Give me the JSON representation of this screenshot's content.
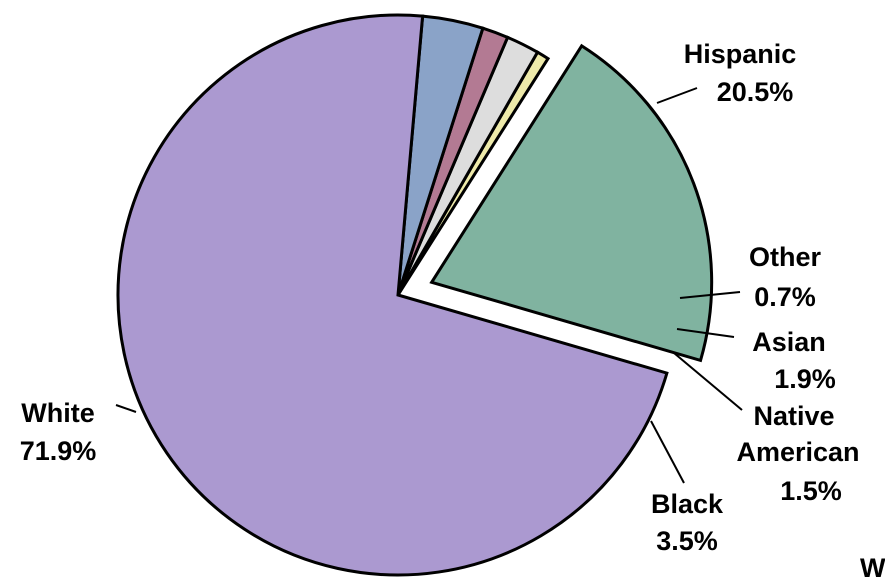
{
  "chart_data": {
    "type": "pie",
    "title": "",
    "slices": [
      {
        "name": "Hispanic",
        "value": 20.5,
        "value_label": "20.5%",
        "color": "#80b3a0",
        "exploded": true
      },
      {
        "name": "Other",
        "value": 0.7,
        "value_label": "0.7%",
        "color": "#eeeaaa",
        "exploded": false
      },
      {
        "name": "Asian",
        "value": 1.9,
        "value_label": "1.9%",
        "color": "#dddddd",
        "exploded": false
      },
      {
        "name": "Native American",
        "name_lines": [
          "Native",
          "American"
        ],
        "value": 1.5,
        "value_label": "1.5%",
        "color": "#b37a93",
        "exploded": false
      },
      {
        "name": "Black",
        "value": 3.5,
        "value_label": "3.5%",
        "color": "#8aa3c8",
        "exploded": false
      },
      {
        "name": "White",
        "value": 71.9,
        "value_label": "71.9%",
        "color": "#ab99d0",
        "exploded": false
      }
    ],
    "corner_fragment": "W"
  }
}
